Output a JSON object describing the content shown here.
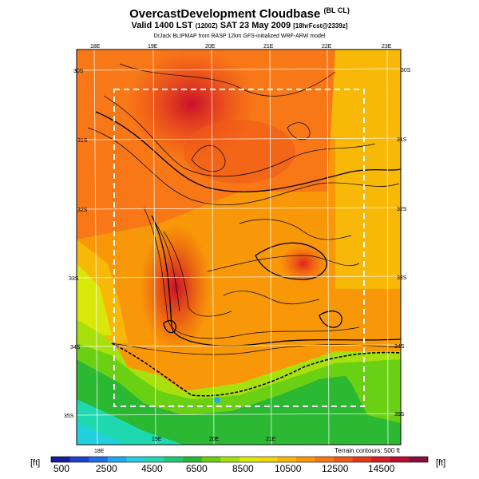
{
  "title": {
    "main": "OvercastDevelopment Cloudbase",
    "main_tag": "(BL CL)",
    "valid_a": "Valid 1400 LST",
    "valid_b": "(1200Z)",
    "valid_c": "SAT 23 May 2009",
    "valid_d": "[18hrFcst@2339z]",
    "credit": "DrJack BLIPMAP from RASP 12km GFS-initialized WRF-ARW model"
  },
  "map": {
    "lon_labels_top": [
      "18E",
      "19E",
      "20E",
      "21E",
      "22E",
      "23E"
    ],
    "lon_labels_bottom": [
      "18E",
      "19E",
      "20E",
      "21E"
    ],
    "lat_labels_left": [
      "30S",
      "31S",
      "32S",
      "33S",
      "34S",
      "35S"
    ],
    "lat_labels_right": [
      "30S",
      "31S",
      "32S",
      "33S",
      "34S",
      "35S"
    ],
    "terrain_note": "Terrain contours: 500 ft"
  },
  "colorbar": {
    "unit_left": "[ft]",
    "unit_right": "[ft]",
    "tick_labels": [
      "500",
      "2500",
      "4500",
      "6500",
      "8500",
      "10500",
      "12500",
      "14500"
    ],
    "colors": [
      "#1a1a9e",
      "#1f3fd0",
      "#1f6fe8",
      "#20a8f0",
      "#22d0e0",
      "#1fd8b0",
      "#20c870",
      "#2bb832",
      "#6ad014",
      "#a8e00e",
      "#d8e808",
      "#f0d808",
      "#f8b808",
      "#f89808",
      "#f87818",
      "#f05818",
      "#e83818",
      "#d81c20",
      "#b8102c",
      "#8a0c44"
    ]
  }
}
